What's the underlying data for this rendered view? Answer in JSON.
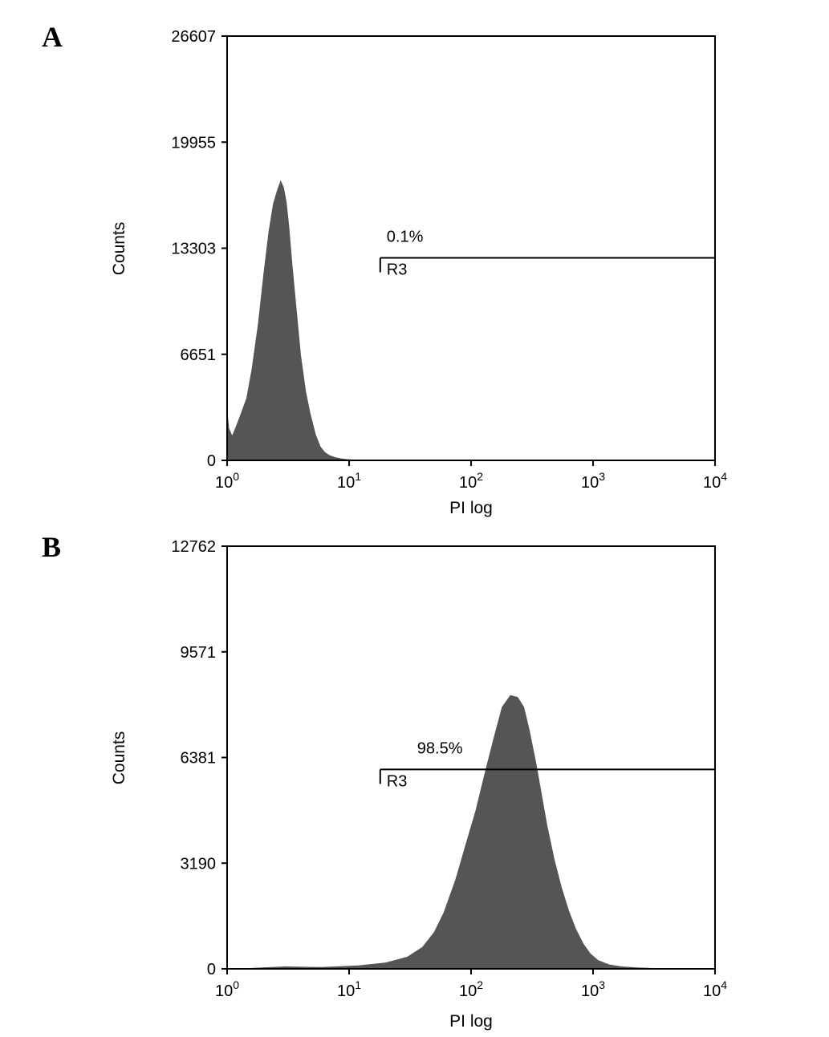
{
  "chart_data": [
    {
      "type": "area",
      "panel_label": "A",
      "xlabel": "PI log",
      "ylabel": "Counts",
      "x_scale": "log",
      "xlim": [
        1,
        10000
      ],
      "ylim": [
        0,
        26607
      ],
      "x_ticks": [
        {
          "value": 1,
          "base": "10",
          "exp": "0"
        },
        {
          "value": 10,
          "base": "10",
          "exp": "1"
        },
        {
          "value": 100,
          "base": "10",
          "exp": "2"
        },
        {
          "value": 1000,
          "base": "10",
          "exp": "3"
        },
        {
          "value": 10000,
          "base": "10",
          "exp": "4"
        }
      ],
      "y_ticks": [
        "0",
        "6651",
        "13303",
        "19955",
        "26607"
      ],
      "grid": false,
      "fill_color": "#555555",
      "x": [
        1.0,
        1.03,
        1.1,
        1.2,
        1.3,
        1.45,
        1.6,
        1.8,
        2.0,
        2.2,
        2.4,
        2.6,
        2.75,
        2.9,
        3.05,
        3.2,
        3.4,
        3.7,
        4.0,
        4.4,
        4.8,
        5.3,
        5.8,
        6.3,
        6.9,
        7.6,
        8.5,
        9.5,
        10.5,
        11.5,
        12.2
      ],
      "y": [
        3000,
        2000,
        1500,
        2200,
        2900,
        3900,
        5700,
        8500,
        11700,
        14300,
        16100,
        17000,
        17500,
        17100,
        16200,
        14700,
        12300,
        9300,
        6600,
        4300,
        2900,
        1600,
        850,
        500,
        300,
        180,
        100,
        50,
        30,
        10,
        0
      ],
      "gate": {
        "name": "R3",
        "percent": "0.1%",
        "x_start": 18,
        "x_end": 10000,
        "y_level": 12700
      }
    },
    {
      "type": "area",
      "panel_label": "B",
      "xlabel": "PI log",
      "ylabel": "Counts",
      "x_scale": "log",
      "xlim": [
        1,
        10000
      ],
      "ylim": [
        0,
        12762
      ],
      "x_ticks": [
        {
          "value": 1,
          "base": "10",
          "exp": "0"
        },
        {
          "value": 10,
          "base": "10",
          "exp": "1"
        },
        {
          "value": 100,
          "base": "10",
          "exp": "2"
        },
        {
          "value": 1000,
          "base": "10",
          "exp": "3"
        },
        {
          "value": 10000,
          "base": "10",
          "exp": "4"
        }
      ],
      "y_ticks": [
        "0",
        "3190",
        "6381",
        "9571",
        "12762"
      ],
      "grid": false,
      "fill_color": "#555555",
      "x": [
        1.6,
        3,
        6,
        12,
        20,
        30,
        40,
        50,
        60,
        75,
        90,
        110,
        130,
        155,
        180,
        210,
        240,
        270,
        300,
        340,
        380,
        420,
        480,
        550,
        630,
        720,
        830,
        950,
        1100,
        1350,
        1700,
        2300,
        3200
      ],
      "y": [
        15,
        60,
        40,
        90,
        180,
        350,
        650,
        1100,
        1700,
        2700,
        3700,
        4800,
        5900,
        7000,
        7900,
        8250,
        8200,
        7900,
        7200,
        6200,
        5200,
        4300,
        3300,
        2450,
        1750,
        1200,
        750,
        450,
        250,
        120,
        60,
        30,
        10
      ],
      "gate": {
        "name": "R3",
        "percent": "98.5%",
        "x_start": 18,
        "x_end": 10000,
        "y_level": 6020
      }
    }
  ]
}
